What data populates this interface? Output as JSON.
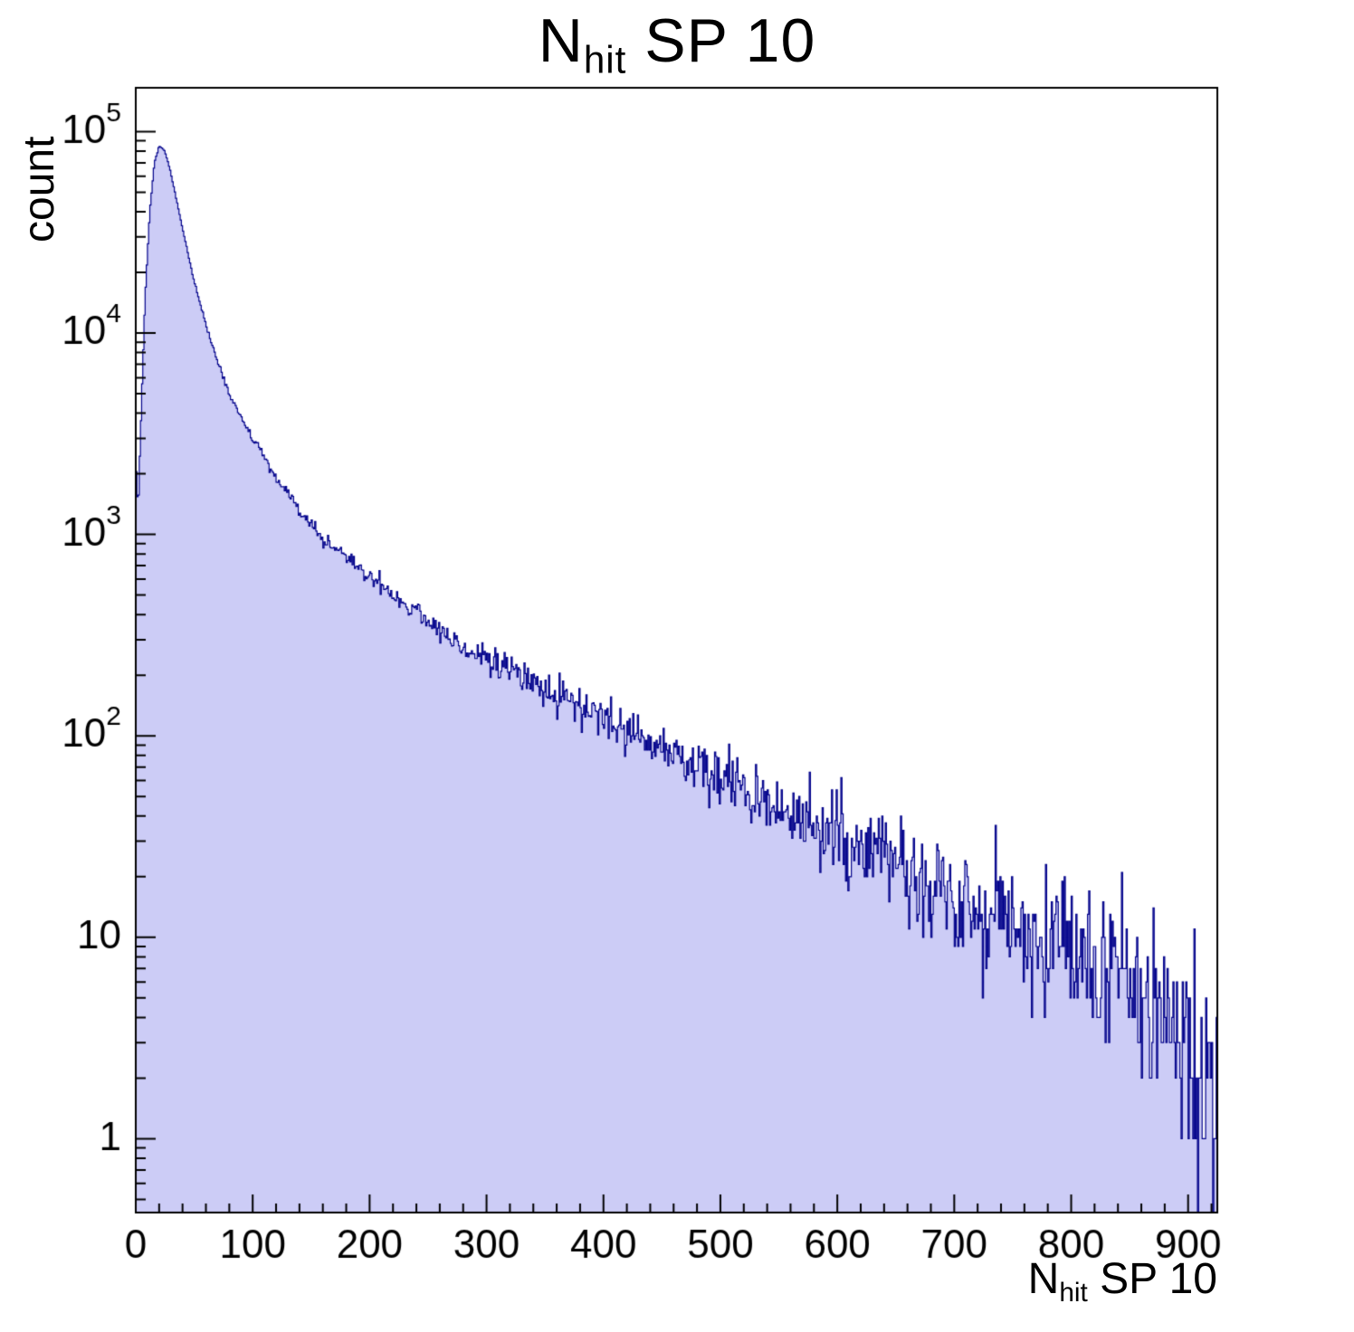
{
  "title": {
    "prefix": "N",
    "sub": "hit",
    "suffix": " SP 10"
  },
  "y_axis": {
    "label": "count",
    "scale": "log",
    "min": 0.43,
    "max": 165000,
    "decade_labels": [
      "1",
      "10",
      "10^2",
      "10^3",
      "10^4",
      "10^5"
    ]
  },
  "x_axis": {
    "label_prefix": "N",
    "label_sub": "hit",
    "label_suffix": " SP 10",
    "min": 0,
    "max": 925,
    "major_tick_step": 100,
    "minor_tick_step": 20,
    "tick_labels": [
      "0",
      "100",
      "200",
      "300",
      "400",
      "500",
      "600",
      "700",
      "800",
      "900"
    ]
  },
  "chart_data": {
    "type": "bar",
    "subtype": "histogram",
    "title": "N_hit SP 10",
    "xlabel": "N_hit SP 10",
    "ylabel": "count",
    "xlim": [
      0,
      925
    ],
    "ylim": [
      0.43,
      165000
    ],
    "yscale": "log",
    "grid": false,
    "legend": false,
    "bin_width": 1,
    "n_bins": 925,
    "fill_color": "#ccccf6",
    "line_color": "#00008a",
    "frame_color": "#000000",
    "noise_seed": 12345,
    "anchors_x": [
      0,
      2,
      4,
      8,
      12,
      16,
      20,
      25,
      30,
      40,
      50,
      60,
      70,
      80,
      90,
      100,
      120,
      140,
      160,
      180,
      200,
      220,
      240,
      260,
      280,
      300,
      320,
      340,
      360,
      380,
      400,
      420,
      440,
      460,
      480,
      500,
      520,
      540,
      560,
      580,
      600,
      620,
      640,
      660,
      680,
      700,
      720,
      740,
      760,
      780,
      800,
      820,
      840,
      860,
      880,
      900,
      915,
      925
    ],
    "anchors_count": [
      2400,
      1300,
      3000,
      15000,
      40000,
      70000,
      85000,
      80000,
      62000,
      33000,
      18000,
      11000,
      7200,
      5000,
      3800,
      3000,
      1900,
      1300,
      950,
      780,
      620,
      500,
      420,
      330,
      280,
      240,
      210,
      185,
      160,
      140,
      120,
      105,
      95,
      85,
      70,
      60,
      55,
      48,
      42,
      38,
      32,
      28,
      25,
      22,
      20,
      17,
      15,
      13,
      11,
      10,
      9,
      8,
      7,
      6,
      5,
      3.5,
      2,
      1.2
    ],
    "peak": {
      "x": 20,
      "count": 85000
    }
  }
}
